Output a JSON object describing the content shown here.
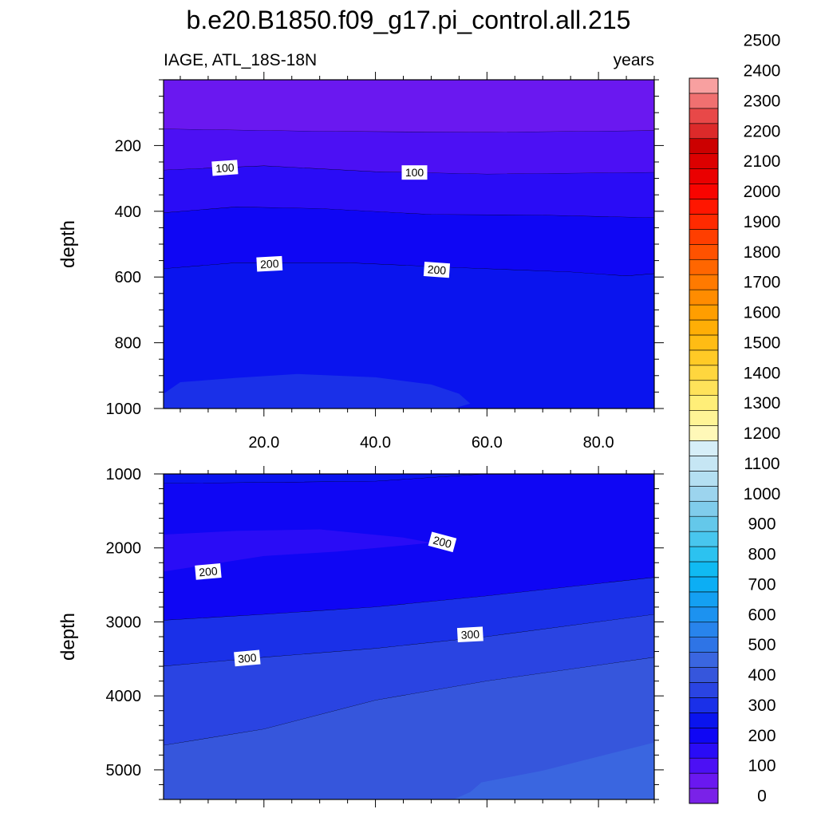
{
  "chart_data": {
    "type": "contour",
    "title": "b.e20.B1850.f09_g17.pi_control.all.215",
    "subtitle_left": "IAGE, ATL_18S-18N",
    "subtitle_right": "years",
    "xlabel": "",
    "ylabel": "depth",
    "xlim": [
      2,
      90
    ],
    "x_ticks": [
      20,
      40,
      60,
      80
    ],
    "x_tick_labels": [
      "20.0",
      "40.0",
      "60.0",
      "80.0"
    ],
    "colorbar": {
      "levels": [
        0,
        50,
        100,
        150,
        200,
        250,
        300,
        350,
        400,
        450,
        500,
        550,
        600,
        650,
        700,
        750,
        800,
        850,
        900,
        950,
        1000,
        1050,
        1100,
        1150,
        1200,
        1250,
        1300,
        1350,
        1400,
        1450,
        1500,
        1550,
        1600,
        1650,
        1700,
        1750,
        1800,
        1850,
        1900,
        1950,
        2000,
        2050,
        2100,
        2150,
        2200,
        2250,
        2300,
        2350,
        2400,
        2450,
        2500
      ],
      "tick_labels": [
        "0",
        "100",
        "200",
        "300",
        "400",
        "500",
        "600",
        "700",
        "800",
        "900",
        "1000",
        "1100",
        "1200",
        "1300",
        "1400",
        "1500",
        "1600",
        "1700",
        "1800",
        "1900",
        "2000",
        "2100",
        "2200",
        "2300",
        "2400",
        "2500"
      ],
      "colors": [
        "#7a22e8",
        "#6a18f0",
        "#4c10f4",
        "#2a0cf6",
        "#0f06f4",
        "#0a14ee",
        "#1a30e8",
        "#2a44e2",
        "#3656dc",
        "#3a66e0",
        "#2e74e6",
        "#2884ec",
        "#1c92f0",
        "#14a0f2",
        "#0caef4",
        "#10baf2",
        "#2cc2f0",
        "#48c6ee",
        "#64c8ea",
        "#80cceb",
        "#9cd4ee",
        "#b4dff2",
        "#c6e6f4",
        "#d6eef8",
        "#fff8b8",
        "#fff496",
        "#ffee78",
        "#ffe25a",
        "#ffd63e",
        "#ffca26",
        "#ffbc14",
        "#ffae06",
        "#ff9e00",
        "#ff8c00",
        "#ff7a00",
        "#ff6600",
        "#ff5200",
        "#ff3e00",
        "#ff2a00",
        "#ff1600",
        "#f80400",
        "#ea0000",
        "#dc0000",
        "#cc0000",
        "#dc2a2a",
        "#e84848",
        "#f07070",
        "#f8a0a0"
      ]
    },
    "panels": [
      {
        "name": "upper",
        "ylim": [
          0,
          1000
        ],
        "y_ticks": [
          200,
          400,
          600,
          800,
          1000
        ],
        "y_tick_labels": [
          "200",
          "400",
          "600",
          "800",
          "1000"
        ],
        "show_x_tick_labels": true,
        "background_level": 250,
        "bands": [
          {
            "level": 0,
            "top": [
              [
                2,
                0
              ],
              [
                90,
                0
              ]
            ],
            "bottom": [
              [
                2,
                0
              ],
              [
                90,
                0
              ]
            ]
          },
          {
            "level": 50,
            "top": [
              [
                2,
                0
              ],
              [
                90,
                0
              ]
            ],
            "bottom": [
              [
                2,
                150
              ],
              [
                30,
                157
              ],
              [
                60,
                160
              ],
              [
                90,
                155
              ]
            ]
          },
          {
            "level": 100,
            "top": [
              [
                2,
                150
              ],
              [
                30,
                157
              ],
              [
                60,
                160
              ],
              [
                90,
                155
              ]
            ],
            "bottom": [
              [
                2,
                275
              ],
              [
                20,
                262
              ],
              [
                40,
                280
              ],
              [
                60,
                287
              ],
              [
                90,
                282
              ]
            ]
          },
          {
            "level": 150,
            "top": [
              [
                2,
                275
              ],
              [
                20,
                262
              ],
              [
                40,
                280
              ],
              [
                60,
                287
              ],
              [
                90,
                282
              ]
            ],
            "bottom": [
              [
                2,
                405
              ],
              [
                15,
                387
              ],
              [
                30,
                392
              ],
              [
                50,
                410
              ],
              [
                70,
                412
              ],
              [
                90,
                420
              ]
            ]
          },
          {
            "level": 200,
            "top": [
              [
                2,
                405
              ],
              [
                15,
                387
              ],
              [
                30,
                392
              ],
              [
                50,
                410
              ],
              [
                70,
                412
              ],
              [
                90,
                420
              ]
            ],
            "bottom": [
              [
                2,
                575
              ],
              [
                15,
                557
              ],
              [
                35,
                557
              ],
              [
                55,
                572
              ],
              [
                75,
                585
              ],
              [
                85,
                597
              ],
              [
                90,
                590
              ]
            ]
          },
          {
            "level": 250,
            "top": [
              [
                2,
                575
              ],
              [
                15,
                557
              ],
              [
                35,
                557
              ],
              [
                55,
                572
              ],
              [
                75,
                585
              ],
              [
                85,
                597
              ],
              [
                90,
                590
              ]
            ],
            "bottom": [
              [
                2,
                1000
              ],
              [
                90,
                1000
              ]
            ]
          },
          {
            "level": 300,
            "top": [
              [
                2,
                955
              ],
              [
                5,
                920
              ],
              [
                15,
                907
              ],
              [
                26,
                895
              ],
              [
                40,
                905
              ],
              [
                50,
                927
              ],
              [
                55,
                955
              ],
              [
                57,
                985
              ],
              [
                54,
                1000
              ]
            ],
            "bottom": [
              [
                2,
                1000
              ],
              [
                54,
                1000
              ]
            ]
          }
        ],
        "contour_labels": [
          {
            "text": "100",
            "x": 13,
            "y": 268,
            "angle": -4
          },
          {
            "text": "100",
            "x": 47,
            "y": 282,
            "angle": 0
          },
          {
            "text": "200",
            "x": 21,
            "y": 560,
            "angle": -3
          },
          {
            "text": "200",
            "x": 51,
            "y": 578,
            "angle": 4
          }
        ]
      },
      {
        "name": "lower",
        "ylim": [
          1000,
          5400
        ],
        "y_ticks": [
          1000,
          2000,
          3000,
          4000,
          5000
        ],
        "y_tick_labels": [
          "1000",
          "2000",
          "3000",
          "4000",
          "5000"
        ],
        "show_x_tick_labels": false,
        "background_level": 250,
        "bands": [
          {
            "level": 250,
            "top": [
              [
                2,
                1000
              ],
              [
                90,
                1000
              ]
            ],
            "bottom": [
              [
                2,
                1130
              ],
              [
                40,
                1100
              ],
              [
                60,
                1000
              ],
              [
                90,
                1000
              ]
            ]
          },
          {
            "level": 200,
            "top": [
              [
                2,
                1130
              ],
              [
                40,
                1100
              ],
              [
                60,
                1000
              ],
              [
                90,
                1000
              ]
            ],
            "bottom": [
              [
                2,
                2980
              ],
              [
                20,
                2900
              ],
              [
                40,
                2800
              ],
              [
                60,
                2650
              ],
              [
                90,
                2400
              ]
            ]
          },
          {
            "level": 150,
            "top": [
              [
                2,
                1820
              ],
              [
                15,
                1770
              ],
              [
                30,
                1750
              ],
              [
                45,
                1860
              ],
              [
                50,
                1930
              ],
              [
                46,
                1960
              ],
              [
                33,
                2050
              ],
              [
                20,
                2110
              ],
              [
                2,
                2320
              ]
            ],
            "bottom": [
              [
                2,
                2320
              ],
              [
                2,
                2320
              ]
            ]
          },
          {
            "level": 300,
            "top": [
              [
                2,
                2980
              ],
              [
                20,
                2900
              ],
              [
                40,
                2800
              ],
              [
                60,
                2650
              ],
              [
                90,
                2400
              ]
            ],
            "bottom": [
              [
                2,
                3600
              ],
              [
                20,
                3480
              ],
              [
                40,
                3360
              ],
              [
                60,
                3200
              ],
              [
                90,
                2900
              ]
            ]
          },
          {
            "level": 350,
            "top": [
              [
                2,
                3600
              ],
              [
                20,
                3480
              ],
              [
                40,
                3360
              ],
              [
                60,
                3200
              ],
              [
                90,
                2900
              ]
            ],
            "bottom": [
              [
                2,
                4670
              ],
              [
                20,
                4450
              ],
              [
                40,
                4060
              ],
              [
                60,
                3800
              ],
              [
                90,
                3480
              ]
            ]
          },
          {
            "level": 400,
            "top": [
              [
                2,
                4670
              ],
              [
                20,
                4450
              ],
              [
                40,
                4060
              ],
              [
                60,
                3800
              ],
              [
                90,
                3480
              ]
            ],
            "bottom": [
              [
                2,
                5400
              ],
              [
                90,
                5400
              ]
            ]
          },
          {
            "level": 450,
            "top": [
              [
                54,
                5400
              ],
              [
                57,
                5300
              ],
              [
                59,
                5170
              ],
              [
                70,
                5010
              ],
              [
                90,
                4630
              ]
            ],
            "bottom": [
              [
                54,
                5400
              ],
              [
                90,
                5400
              ]
            ]
          }
        ],
        "contour_labels": [
          {
            "text": "200",
            "x": 52,
            "y": 1920,
            "angle": 15
          },
          {
            "text": "200",
            "x": 10,
            "y": 2320,
            "angle": -5
          },
          {
            "text": "300",
            "x": 57,
            "y": 3170,
            "angle": -3
          },
          {
            "text": "300",
            "x": 17,
            "y": 3490,
            "angle": -5
          }
        ]
      }
    ]
  }
}
